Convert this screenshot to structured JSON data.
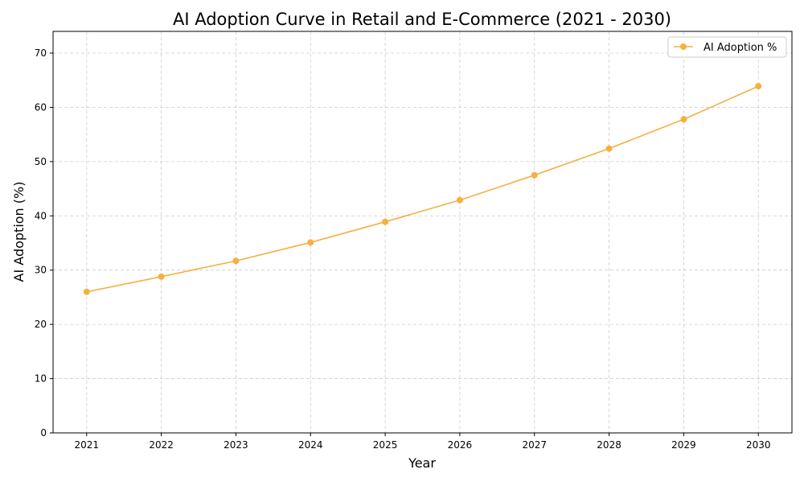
{
  "chart_data": {
    "type": "line",
    "title": "AI Adoption Curve in Retail and E-Commerce (2021 - 2030)",
    "xlabel": "Year",
    "ylabel": "AI Adoption (%)",
    "x": [
      2021,
      2022,
      2023,
      2024,
      2025,
      2026,
      2027,
      2028,
      2029,
      2030
    ],
    "series": [
      {
        "name": "AI Adoption %",
        "values": [
          26.0,
          28.8,
          31.7,
          35.1,
          38.9,
          42.9,
          47.5,
          52.4,
          57.8,
          63.9
        ],
        "color": "#f5b041",
        "marker": "circle"
      }
    ],
    "xticks": [
      "2021",
      "2022",
      "2023",
      "2024",
      "2025",
      "2026",
      "2027",
      "2028",
      "2029",
      "2030"
    ],
    "yticks": [
      "0",
      "10",
      "20",
      "30",
      "40",
      "50",
      "60",
      "70"
    ],
    "xlim": [
      2020.55,
      2030.45
    ],
    "ylim": [
      0,
      74
    ],
    "grid": true,
    "grid_style": "dashed",
    "legend_position": "top-right"
  }
}
